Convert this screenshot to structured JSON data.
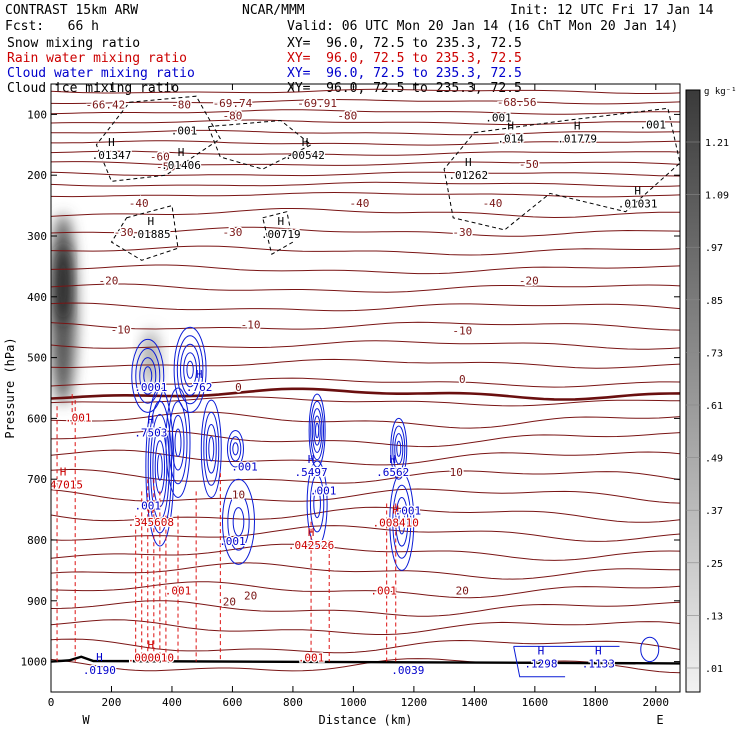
{
  "header": {
    "model": "CONTRAST 15km ARW",
    "org": "NCAR/MMM",
    "init": "Init: 12 UTC Fri 17 Jan 14",
    "fcst": "Fcst:   66 h",
    "valid": "Valid: 06 UTC Mon 20 Jan 14 (16 ChT Mon 20 Jan 14)",
    "fields": [
      {
        "name": "Snow mixing ratio",
        "xy": "XY=  96.0, 72.5 to 235.3, 72.5",
        "color": "#000000"
      },
      {
        "name": "Rain water mixing ratio",
        "xy": "XY=  96.0, 72.5 to 235.3, 72.5",
        "color": "#cc0000"
      },
      {
        "name": "Cloud water mixing ratio",
        "xy": "XY=  96.0, 72.5 to 235.3, 72.5",
        "color": "#0000cc"
      },
      {
        "name": "Cloud ice mixing ratio",
        "xy": "XY=  96.0, 72.5 to 235.3, 72.5",
        "color": "#000000"
      }
    ]
  },
  "chart_data": {
    "type": "heatmap",
    "xlabel": "Distance (km)",
    "ylabel": "Pressure (hPa)",
    "x_ticks": [
      0,
      200,
      400,
      600,
      800,
      1000,
      1200,
      1400,
      1600,
      1800,
      2000
    ],
    "y_ticks": [
      100,
      200,
      300,
      400,
      500,
      600,
      700,
      800,
      900,
      1000
    ],
    "xlim": [
      0,
      2080
    ],
    "ylim": [
      1050,
      50
    ],
    "y_scale": "linear",
    "x_end_labels": {
      "left": "W",
      "right": "E"
    },
    "colorbar": {
      "unit": "g kg⁻¹",
      "levels": [
        "1.21",
        "1.09",
        ".97",
        ".85",
        ".73",
        ".61",
        ".49",
        ".37",
        ".25",
        ".13",
        ".01"
      ]
    },
    "temperature_labels": [
      {
        "text": "-80",
        "x": 430,
        "p": 90
      },
      {
        "text": "-80",
        "x": 600,
        "p": 108
      },
      {
        "text": "-80",
        "x": 980,
        "p": 108
      },
      {
        "text": "-60",
        "x": 360,
        "p": 176
      },
      {
        "text": "-50",
        "x": 380,
        "p": 192
      },
      {
        "text": "-50",
        "x": 1580,
        "p": 188
      },
      {
        "text": "-40",
        "x": 290,
        "p": 252
      },
      {
        "text": "-40",
        "x": 1020,
        "p": 252
      },
      {
        "text": "-40",
        "x": 1460,
        "p": 252
      },
      {
        "text": "-30",
        "x": 240,
        "p": 300
      },
      {
        "text": "-30",
        "x": 600,
        "p": 300
      },
      {
        "text": "-30",
        "x": 1360,
        "p": 300
      },
      {
        "text": "-20",
        "x": 190,
        "p": 380
      },
      {
        "text": "-20",
        "x": 1580,
        "p": 380
      },
      {
        "text": "-10",
        "x": 230,
        "p": 460
      },
      {
        "text": "-10",
        "x": 660,
        "p": 452
      },
      {
        "text": "-10",
        "x": 1360,
        "p": 462
      },
      {
        "text": "0",
        "x": 620,
        "p": 555
      },
      {
        "text": "0",
        "x": 1360,
        "p": 542
      },
      {
        "text": "10",
        "x": 1340,
        "p": 695
      },
      {
        "text": "10",
        "x": 620,
        "p": 732
      },
      {
        "text": "20",
        "x": 590,
        "p": 908
      },
      {
        "text": "20",
        "x": 660,
        "p": 898
      },
      {
        "text": "20",
        "x": 1360,
        "p": 890
      },
      {
        "text": "-66.42",
        "x": 180,
        "p": 90
      },
      {
        "text": "-69.74",
        "x": 600,
        "p": 88
      },
      {
        "text": "-69.91",
        "x": 880,
        "p": 88
      },
      {
        "text": "-68.56",
        "x": 1540,
        "p": 86
      }
    ],
    "black_maxima": [
      {
        "text": ".01347",
        "x": 200,
        "p": 173
      },
      {
        "text": ".01406",
        "x": 430,
        "p": 190
      },
      {
        "text": ".00542",
        "x": 840,
        "p": 173
      },
      {
        "text": ".014",
        "x": 1520,
        "p": 146
      },
      {
        "text": ".01779",
        "x": 1740,
        "p": 146
      },
      {
        "text": ".01262",
        "x": 1380,
        "p": 206
      },
      {
        "text": ".01031",
        "x": 1940,
        "p": 253
      },
      {
        "text": ".01885",
        "x": 330,
        "p": 303
      },
      {
        "text": ".00719",
        "x": 760,
        "p": 303
      },
      {
        "text": ".001",
        "x": 440,
        "p": 133
      },
      {
        "text": ".001",
        "x": 1480,
        "p": 112
      },
      {
        "text": ".001",
        "x": 1990,
        "p": 123
      }
    ],
    "red_maxima": [
      {
        "text": ".001",
        "x": 90,
        "p": 605
      },
      {
        "text": ".47015",
        "x": 40,
        "p": 715
      },
      {
        "text": ".345608",
        "x": 330,
        "p": 777
      },
      {
        "text": ".042526",
        "x": 860,
        "p": 815
      },
      {
        "text": ".008410",
        "x": 1140,
        "p": 778
      },
      {
        "text": ".001",
        "x": 420,
        "p": 890
      },
      {
        "text": ".001",
        "x": 1100,
        "p": 890
      },
      {
        "text": ".000010",
        "x": 330,
        "p": 1000
      },
      {
        "text": ".001",
        "x": 860,
        "p": 1000
      }
    ],
    "blue_maxima": [
      {
        "text": ".0001",
        "x": 330,
        "p": 555
      },
      {
        "text": ".762",
        "x": 490,
        "p": 555
      },
      {
        "text": ".7503",
        "x": 330,
        "p": 630
      },
      {
        "text": ".5497",
        "x": 860,
        "p": 695
      },
      {
        "text": ".6562",
        "x": 1130,
        "p": 695
      },
      {
        "text": ".001",
        "x": 320,
        "p": 750
      },
      {
        "text": ".001",
        "x": 640,
        "p": 686
      },
      {
        "text": ".001",
        "x": 900,
        "p": 725
      },
      {
        "text": ".001",
        "x": 1180,
        "p": 758
      },
      {
        "text": ".001",
        "x": 600,
        "p": 808
      },
      {
        "text": ".0190",
        "x": 160,
        "p": 1020
      },
      {
        "text": ".0039",
        "x": 1180,
        "p": 1020
      },
      {
        "text": ".1298",
        "x": 1620,
        "p": 1010
      },
      {
        "text": ".1133",
        "x": 1810,
        "p": 1010
      }
    ]
  }
}
